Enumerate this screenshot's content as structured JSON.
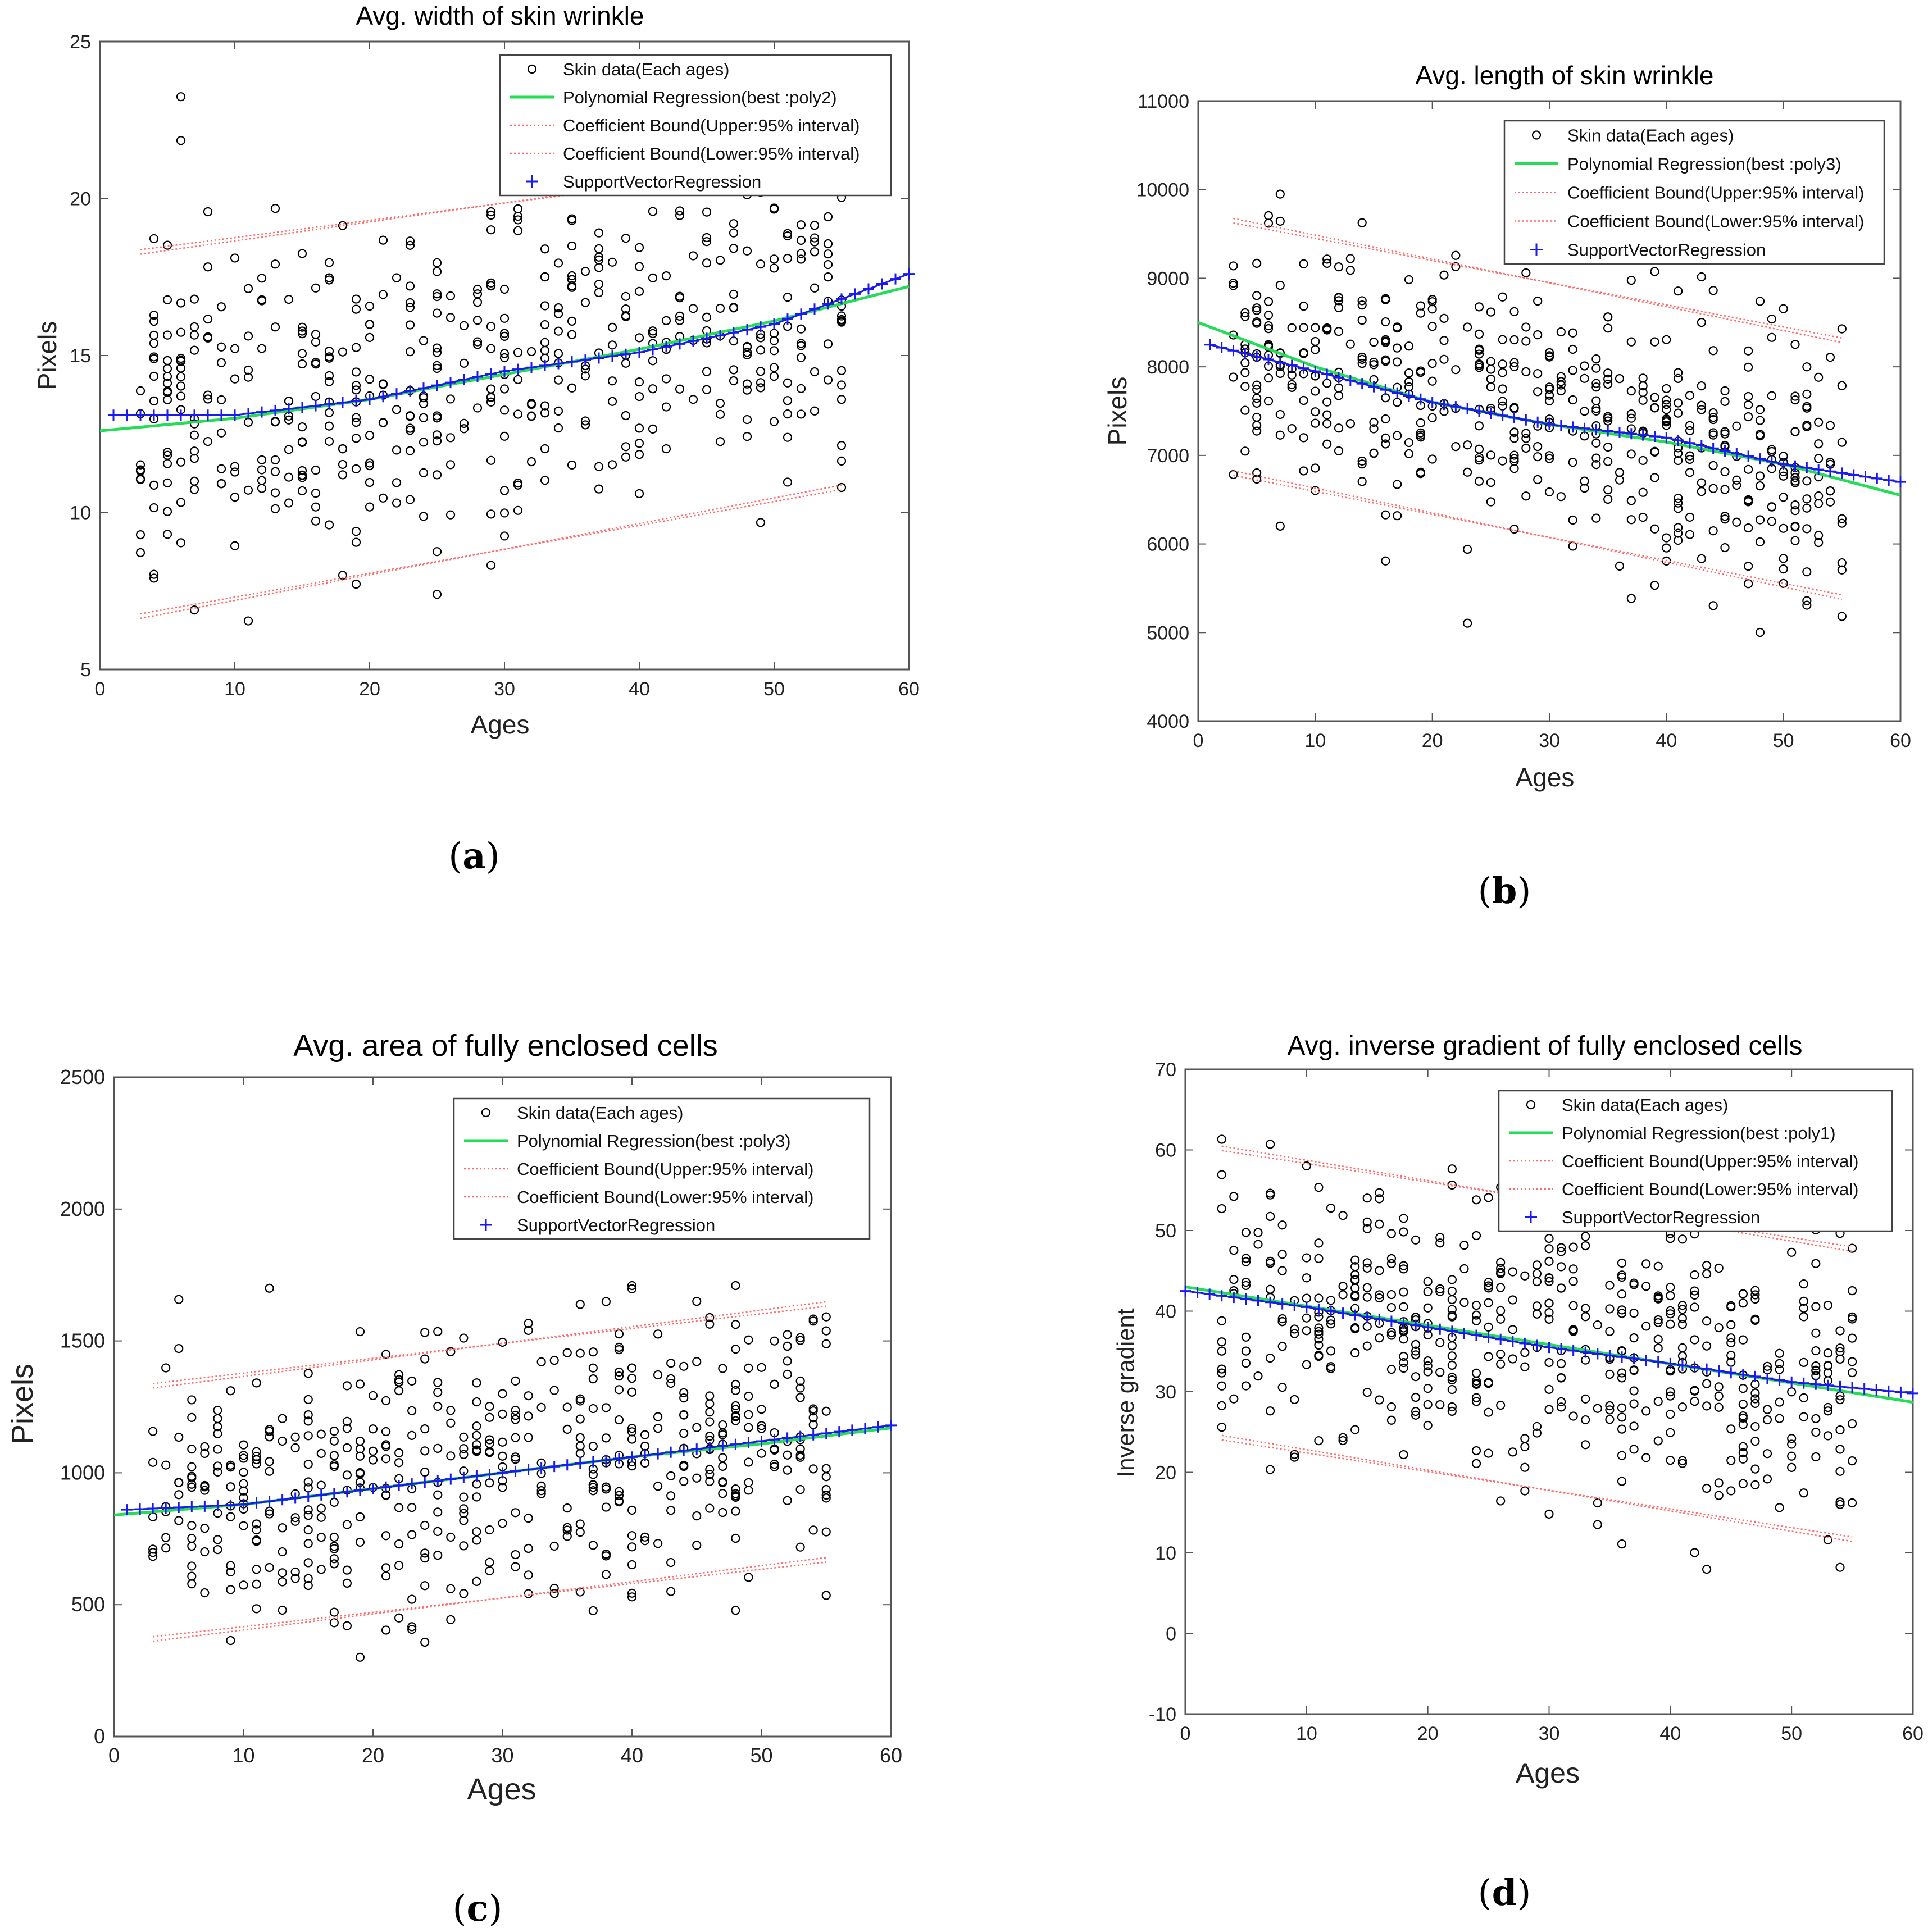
{
  "colors": {
    "poly": "#22dd55",
    "bound": "#ff6a6a",
    "svr": "#1a1aee",
    "scatter": "#000000",
    "axis": "#555555"
  },
  "chart_data": [
    {
      "id": "a",
      "type": "scatter",
      "title": "Avg. width of skin wrinkle",
      "xlabel": "Ages",
      "ylabel": "Pixels",
      "caption_letter": "a",
      "xlim": [
        0,
        60
      ],
      "ylim": [
        5,
        25
      ],
      "xticks": [
        0,
        10,
        20,
        30,
        40,
        50,
        60
      ],
      "yticks": [
        5,
        10,
        15,
        20,
        25
      ],
      "legend": [
        "Skin data(Each ages)",
        "Polynomial Regression(best :poly2)",
        "Coefficient Bound(Upper:95% interval)",
        "Coefficient Bound(Lower:95% interval)",
        "SupportVectorRegression"
      ],
      "poly": [
        [
          0,
          12.6
        ],
        [
          10,
          13.0
        ],
        [
          20,
          13.6
        ],
        [
          30,
          14.4
        ],
        [
          40,
          15.2
        ],
        [
          50,
          16.1
        ],
        [
          60,
          17.2
        ]
      ],
      "svr": [
        [
          1,
          13.1
        ],
        [
          10,
          13.1
        ],
        [
          20,
          13.6
        ],
        [
          30,
          14.5
        ],
        [
          40,
          15.1
        ],
        [
          50,
          16.0
        ],
        [
          60,
          17.6
        ]
      ],
      "upper_bound": [
        [
          3,
          18.3
        ],
        [
          55,
          21.3
        ]
      ],
      "lower_bound": [
        [
          3,
          6.7
        ],
        [
          55,
          10.8
        ]
      ],
      "scatter": {
        "n": 520,
        "seed": 11,
        "x": [
          3,
          55
        ],
        "center": [
          [
            3,
            13.1
          ],
          [
            55,
            16.4
          ]
        ],
        "spread": 2.8,
        "clip": [
          5.3,
          24.5
        ]
      }
    },
    {
      "id": "b",
      "type": "scatter",
      "title": "Avg. length of skin wrinkle",
      "xlabel": "Ages",
      "ylabel": "Pixels",
      "caption_letter": "b",
      "xlim": [
        0,
        60
      ],
      "ylim": [
        4000,
        11000
      ],
      "xticks": [
        0,
        10,
        20,
        30,
        40,
        50,
        60
      ],
      "yticks": [
        4000,
        5000,
        6000,
        7000,
        8000,
        9000,
        10000,
        11000
      ],
      "legend": [
        "Skin data(Each ages)",
        "Polynomial Regression(best :poly3)",
        "Coefficient Bound(Upper:95% interval)",
        "Coefficient Bound(Lower:95% interval)",
        "SupportVectorRegression"
      ],
      "poly": [
        [
          0,
          8500
        ],
        [
          10,
          8000
        ],
        [
          20,
          7600
        ],
        [
          30,
          7350
        ],
        [
          40,
          7150
        ],
        [
          50,
          6900
        ],
        [
          60,
          6550
        ]
      ],
      "svr": [
        [
          1,
          8250
        ],
        [
          10,
          7950
        ],
        [
          20,
          7600
        ],
        [
          30,
          7350
        ],
        [
          40,
          7200
        ],
        [
          50,
          6900
        ],
        [
          60,
          6700
        ]
      ],
      "upper_bound": [
        [
          3,
          9650
        ],
        [
          55,
          8300
        ]
      ],
      "lower_bound": [
        [
          3,
          6800
        ],
        [
          55,
          5400
        ]
      ],
      "scatter": {
        "n": 520,
        "seed": 23,
        "x": [
          3,
          55
        ],
        "center": [
          [
            3,
            8300
          ],
          [
            55,
            6800
          ]
        ],
        "spread": 720,
        "clip": [
          4400,
          9950
        ]
      }
    },
    {
      "id": "c",
      "type": "scatter",
      "title": "Avg. area of fully enclosed cells",
      "xlabel": "Ages",
      "ylabel": "Pixels",
      "caption_letter": "c",
      "xlim": [
        0,
        60
      ],
      "ylim": [
        0,
        2500
      ],
      "xticks": [
        0,
        10,
        20,
        30,
        40,
        50,
        60
      ],
      "yticks": [
        0,
        500,
        1000,
        1500,
        2000,
        2500
      ],
      "legend": [
        "Skin data(Each ages)",
        "Polynomial Regression(best :poly3)",
        "Coefficient Bound(Upper:95% interval)",
        "Coefficient Bound(Lower:95% interval)",
        "SupportVectorRegression"
      ],
      "poly": [
        [
          0,
          840
        ],
        [
          10,
          880
        ],
        [
          20,
          940
        ],
        [
          30,
          1000
        ],
        [
          40,
          1060
        ],
        [
          50,
          1110
        ],
        [
          60,
          1170
        ]
      ],
      "svr": [
        [
          1,
          860
        ],
        [
          10,
          880
        ],
        [
          20,
          940
        ],
        [
          30,
          1000
        ],
        [
          40,
          1060
        ],
        [
          50,
          1120
        ],
        [
          60,
          1180
        ]
      ],
      "upper_bound": [
        [
          3,
          1330
        ],
        [
          55,
          1640
        ]
      ],
      "lower_bound": [
        [
          3,
          370
        ],
        [
          55,
          670
        ]
      ],
      "scatter": {
        "n": 520,
        "seed": 37,
        "x": [
          3,
          55
        ],
        "center": [
          [
            3,
            860
          ],
          [
            55,
            1150
          ]
        ],
        "spread": 260,
        "clip": [
          280,
          1710
        ]
      }
    },
    {
      "id": "d",
      "type": "scatter",
      "title": "Avg. inverse gradient of fully enclosed cells",
      "xlabel": "Ages",
      "ylabel": "Inverse gradient",
      "caption_letter": "d",
      "xlim": [
        0,
        60
      ],
      "ylim": [
        -10,
        70
      ],
      "xticks": [
        0,
        10,
        20,
        30,
        40,
        50,
        60
      ],
      "yticks": [
        -10,
        0,
        10,
        20,
        30,
        40,
        50,
        60,
        70
      ],
      "legend": [
        "Skin data(Each ages)",
        "Polynomial Regression(best :poly1)",
        "Coefficient Bound(Upper:95% interval)",
        "Coefficient Bound(Lower:95% interval)",
        "SupportVectorRegression"
      ],
      "poly": [
        [
          0,
          43
        ],
        [
          60,
          28.7
        ]
      ],
      "svr": [
        [
          0,
          42.5
        ],
        [
          10,
          40.5
        ],
        [
          20,
          38
        ],
        [
          30,
          35.5
        ],
        [
          40,
          33.5
        ],
        [
          50,
          31.2
        ],
        [
          60,
          29.8
        ]
      ],
      "upper_bound": [
        [
          3,
          60.2
        ],
        [
          55,
          47.7
        ]
      ],
      "lower_bound": [
        [
          3,
          24.3
        ],
        [
          55,
          11.7
        ]
      ],
      "scatter": {
        "n": 520,
        "seed": 53,
        "x": [
          3,
          55
        ],
        "center": [
          [
            3,
            42
          ],
          [
            55,
            31
          ]
        ],
        "spread": 9,
        "clip": [
          -3,
          66
        ]
      }
    }
  ]
}
